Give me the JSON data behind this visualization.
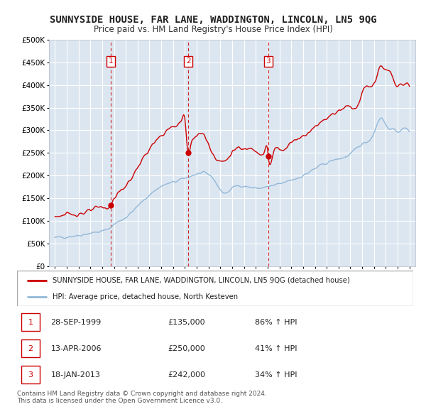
{
  "title": "SUNNYSIDE HOUSE, FAR LANE, WADDINGTON, LINCOLN, LN5 9QG",
  "subtitle": "Price paid vs. HM Land Registry's House Price Index (HPI)",
  "hpi_label": "HPI: Average price, detached house, North Kesteven",
  "property_label": "SUNNYSIDE HOUSE, FAR LANE, WADDINGTON, LINCOLN, LN5 9QG (detached house)",
  "sales": [
    {
      "date": 1999.74,
      "price": 135000,
      "label": "1"
    },
    {
      "date": 2006.28,
      "price": 250000,
      "label": "2"
    },
    {
      "date": 2013.05,
      "price": 242000,
      "label": "3"
    }
  ],
  "sale_annotations": [
    {
      "label": "1",
      "date_str": "28-SEP-1999",
      "price_str": "£135,000",
      "hpi_str": "86% ↑ HPI"
    },
    {
      "label": "2",
      "date_str": "13-APR-2006",
      "price_str": "£250,000",
      "hpi_str": "41% ↑ HPI"
    },
    {
      "label": "3",
      "date_str": "18-JAN-2013",
      "price_str": "£242,000",
      "hpi_str": "34% ↑ HPI"
    }
  ],
  "ylim": [
    0,
    500000
  ],
  "xlim_start": 1994.5,
  "xlim_end": 2025.5,
  "background_color": "#dce6f1",
  "fig_bg_color": "#ffffff",
  "grid_color": "#ffffff",
  "hpi_line_color": "#92b8d8",
  "property_line_color": "#cc0000",
  "sale_dot_color": "#cc0000",
  "vline_color": "#cc0000",
  "footer_text": "Contains HM Land Registry data © Crown copyright and database right 2024.\nThis data is licensed under the Open Government Licence v3.0.",
  "title_fontsize": 10,
  "subtitle_fontsize": 8.5
}
